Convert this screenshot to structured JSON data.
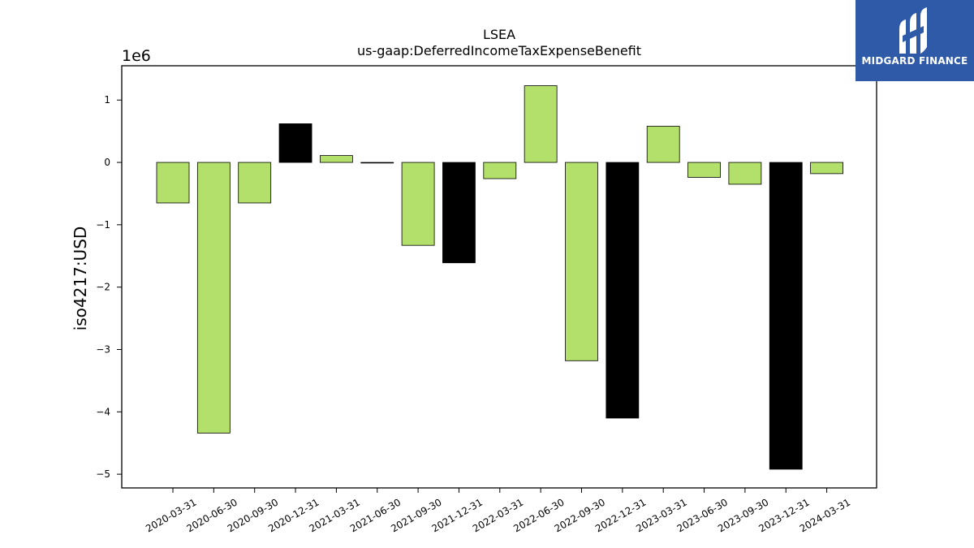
{
  "chart_data": {
    "type": "bar",
    "title": "LSEA",
    "subtitle": "us-gaap:DeferredIncomeTaxExpenseBenefit",
    "ylabel": "iso4217:USD",
    "xlabel": "",
    "y_scale_label": "1e6",
    "ylim": [
      -5.22,
      1.55
    ],
    "y_ticks": [
      1,
      0,
      -1,
      -2,
      -3,
      -4,
      -5
    ],
    "y_tick_labels": [
      "1",
      "0",
      "−1",
      "−2",
      "−3",
      "−4",
      "−5"
    ],
    "grid": false,
    "colors": {
      "green": "#b3df6b",
      "black": "#000000"
    },
    "categories": [
      "2020-03-31",
      "2020-06-30",
      "2020-09-30",
      "2020-12-31",
      "2021-03-31",
      "2021-06-30",
      "2021-09-30",
      "2021-12-31",
      "2022-03-31",
      "2022-06-30",
      "2022-09-30",
      "2022-12-31",
      "2023-03-31",
      "2023-06-30",
      "2023-09-30",
      "2023-12-31",
      "2024-03-31"
    ],
    "values": [
      -0.65,
      -4.34,
      -0.65,
      0.62,
      0.11,
      -0.01,
      -1.33,
      -1.61,
      -0.26,
      1.23,
      -3.18,
      -4.1,
      0.58,
      -0.24,
      -0.35,
      -4.92,
      -0.18
    ],
    "bar_colors": [
      "green",
      "green",
      "green",
      "black",
      "green",
      "green",
      "green",
      "black",
      "green",
      "green",
      "green",
      "black",
      "green",
      "green",
      "green",
      "black",
      "green"
    ]
  },
  "logo": {
    "name": "MIDGARD FINANCE",
    "icon": "midgard-logo-icon"
  }
}
